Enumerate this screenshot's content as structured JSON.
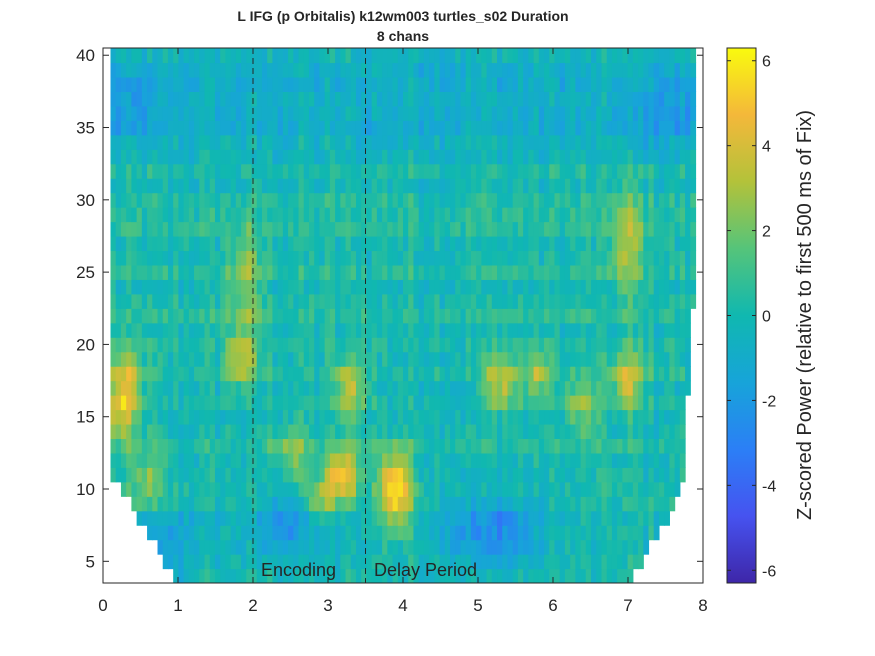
{
  "chart_data": {
    "type": "heatmap",
    "title": "L IFG (p Orbitalis) k12wm003 turtles_s02 Duration",
    "subtitle": "8 chans",
    "xlabel": "",
    "ylabel": "",
    "xlim": [
      0,
      8
    ],
    "ylim": [
      3.5,
      40.5
    ],
    "x_ticks": [
      "0",
      "1",
      "2",
      "3",
      "4",
      "5",
      "6",
      "7",
      "8"
    ],
    "y_ticks": [
      "5",
      "10",
      "15",
      "20",
      "25",
      "30",
      "35",
      "40"
    ],
    "x_tick_values": [
      0,
      1,
      2,
      3,
      4,
      5,
      6,
      7,
      8
    ],
    "y_tick_values": [
      5,
      10,
      15,
      20,
      25,
      30,
      35,
      40
    ],
    "frequencies_start": 4,
    "frequencies_end": 40,
    "time_start": 0.1,
    "time_end": 7.9,
    "colorbar": {
      "label": "Z-scored Power (relative to first 500 ms of Fix)",
      "range": [
        -6.3,
        6.3
      ],
      "ticks": [
        "6",
        "4",
        "2",
        "0",
        "-2",
        "-4",
        "-6"
      ],
      "tick_values": [
        6,
        4,
        2,
        0,
        -2,
        -4,
        -6
      ],
      "colormap": "parula"
    },
    "event_lines": [
      {
        "x": 2.0,
        "style": "dashed"
      },
      {
        "x": 3.5,
        "style": "dashed"
      }
    ],
    "annotations": [
      {
        "text": "Encoding",
        "x": 2.1,
        "y": 4.3
      },
      {
        "text": "Delay Period",
        "x": 3.6,
        "y": 4.3
      }
    ],
    "hotspots": [
      {
        "t": 0.25,
        "f": 15.5,
        "z": 4.2
      },
      {
        "t": 0.3,
        "f": 18.0,
        "z": 3.0
      },
      {
        "t": 1.85,
        "f": 19.0,
        "z": 3.5
      },
      {
        "t": 1.9,
        "f": 24.5,
        "z": 2.5
      },
      {
        "t": 3.3,
        "f": 17.0,
        "z": 3.5
      },
      {
        "t": 3.2,
        "f": 11.0,
        "z": 4.8
      },
      {
        "t": 3.9,
        "f": 11.0,
        "z": 4.0
      },
      {
        "t": 3.9,
        "f": 9.0,
        "z": 3.5
      },
      {
        "t": 2.9,
        "f": 9.0,
        "z": 3.0
      },
      {
        "t": 5.3,
        "f": 17.5,
        "z": 3.8
      },
      {
        "t": 5.8,
        "f": 18.0,
        "z": 2.8
      },
      {
        "t": 7.0,
        "f": 17.5,
        "z": 3.8
      },
      {
        "t": 7.0,
        "f": 27.0,
        "z": 3.0
      },
      {
        "t": 2.5,
        "f": 12.5,
        "z": 2.5
      },
      {
        "t": 6.4,
        "f": 16.0,
        "z": 2.5
      },
      {
        "t": 0.6,
        "f": 10.5,
        "z": 2.2
      }
    ],
    "coldspots": [
      {
        "t": 5.2,
        "f": 7.2,
        "z": -2.6
      },
      {
        "t": 2.6,
        "f": 7.5,
        "z": -2.2
      },
      {
        "t": 0.7,
        "f": 6.0,
        "z": -1.8
      },
      {
        "t": 0.3,
        "f": 37.0,
        "z": -1.4
      },
      {
        "t": 7.6,
        "f": 36.0,
        "z": -1.2
      }
    ]
  }
}
